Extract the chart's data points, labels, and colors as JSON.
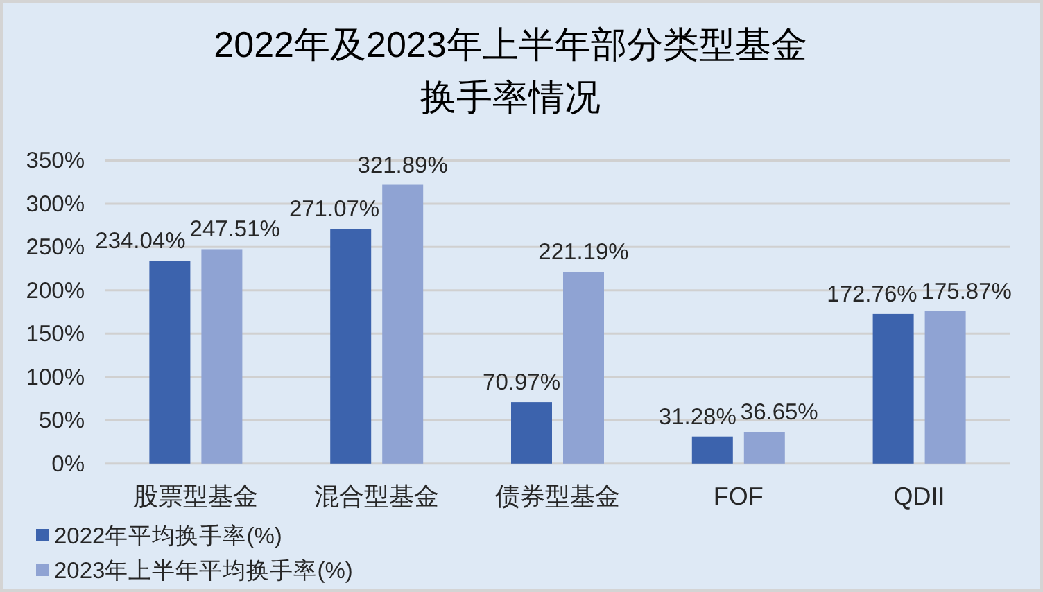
{
  "chart_data": {
    "type": "bar",
    "title": "2022年及2023年上半年部分类型基金换手率情况",
    "categories": [
      "股票型基金",
      "混合型基金",
      "债券型基金",
      "FOF",
      "QDII"
    ],
    "series": [
      {
        "name": "2022年平均换手率(%)",
        "color": "#3c63ad",
        "values": [
          234.04,
          271.07,
          70.97,
          31.28,
          172.76
        ],
        "value_labels": [
          "234.04%",
          "271.07%",
          "70.97%",
          "31.28%",
          "172.76%"
        ]
      },
      {
        "name": "2023年上半年平均换手率(%)",
        "color": "#8fa3d3",
        "values": [
          247.51,
          321.89,
          221.19,
          36.65,
          175.87
        ],
        "value_labels": [
          "247.51%",
          "321.89%",
          "221.19%",
          "36.65%",
          "175.87%"
        ]
      }
    ],
    "ylim": [
      0,
      350
    ],
    "yticks": [
      {
        "value": 0,
        "label": "0%"
      },
      {
        "value": 50,
        "label": "50%"
      },
      {
        "value": 100,
        "label": "100%"
      },
      {
        "value": 150,
        "label": "150%"
      },
      {
        "value": 200,
        "label": "200%"
      },
      {
        "value": 250,
        "label": "250%"
      },
      {
        "value": 300,
        "label": "300%"
      },
      {
        "value": 350,
        "label": "350%"
      }
    ],
    "grid": "y",
    "legend": "bottom left"
  }
}
